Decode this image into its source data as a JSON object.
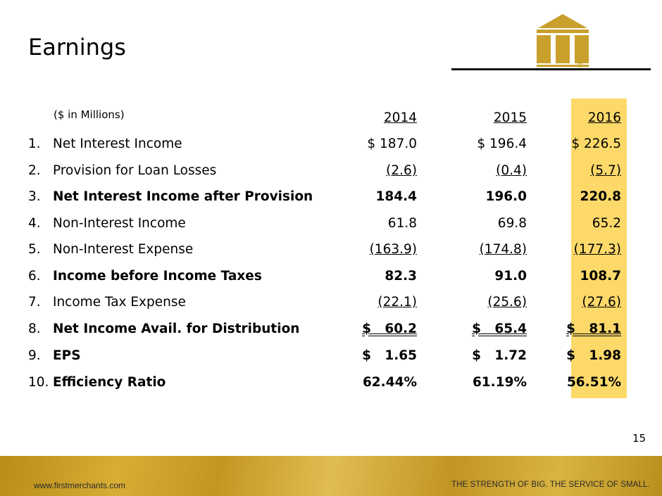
{
  "title": "Earnings",
  "units": "($ in Millions)",
  "columns": [
    "2014",
    "2015",
    "2016"
  ],
  "rows": [
    {
      "num": "1.",
      "label": "Net Interest Income",
      "v1": "$ 187.0",
      "v2": "$ 196.4",
      "v3": "$ 226.5"
    },
    {
      "num": "2.",
      "label": "Provision for Loan Losses",
      "v1": "(2.6)",
      "v2": "(0.4)",
      "v3": "(5.7)"
    },
    {
      "num": "3.",
      "label": "Net Interest Income after Provision",
      "v1": "184.4",
      "v2": "196.0",
      "v3": "220.8"
    },
    {
      "num": "4.",
      "label": "Non-Interest Income",
      "v1": "61.8",
      "v2": "69.8",
      "v3": "65.2"
    },
    {
      "num": "5.",
      "label": "Non-Interest Expense",
      "v1": "(163.9)",
      "v2": "(174.8)",
      "v3": "(177.3)"
    },
    {
      "num": "6.",
      "label": "Income before Income Taxes",
      "v1": "82.3",
      "v2": "91.0",
      "v3": "108.7"
    },
    {
      "num": "7.",
      "label": "Income Tax Expense",
      "v1": "(22.1)",
      "v2": "(25.6)",
      "v3": "(27.6)"
    },
    {
      "num": "8.",
      "label": "Net Income Avail. for Distribution",
      "v1": "$   60.2",
      "v2": "$   65.4",
      "v3": "$   81.1"
    },
    {
      "num": "9.",
      "label": "EPS",
      "v1": "$   1.65",
      "v2": "$   1.72",
      "v3": "$   1.98"
    },
    {
      "num": "10.",
      "label": "Efficiency Ratio",
      "v1": "62.44%",
      "v2": "61.19%",
      "v3": "56.51%"
    }
  ],
  "page_number": "15",
  "footer": {
    "website": "www.firstmerchants.com",
    "tagline": "THE STRENGTH OF BIG. THE SERVICE OF SMALL."
  },
  "logo": {
    "registered_mark": "®",
    "icon": "columns-building-logo"
  },
  "colors": {
    "highlight": "#fdd96a",
    "gold": "#c9a02b",
    "rule": "#111111"
  }
}
